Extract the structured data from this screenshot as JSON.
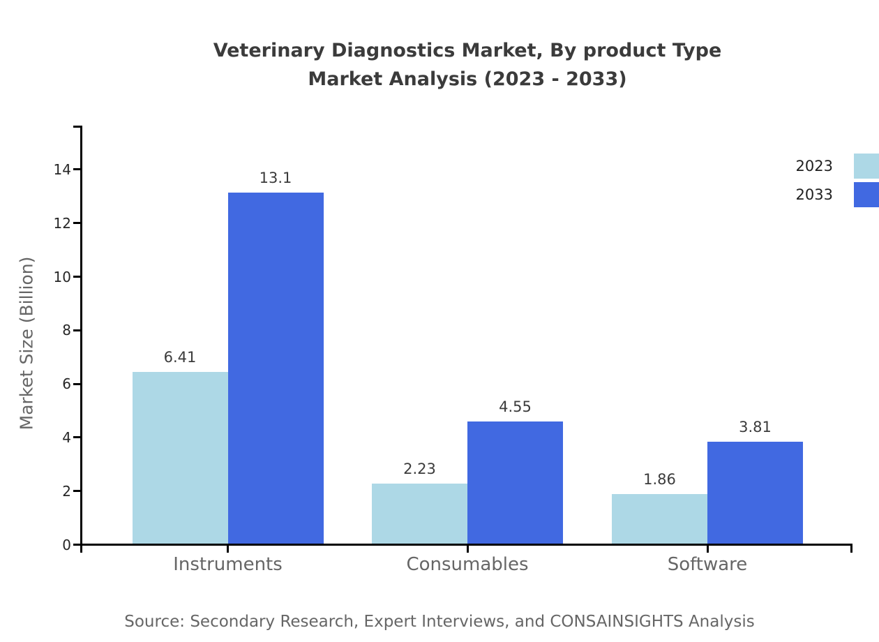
{
  "title": {
    "line1": "Veterinary Diagnostics Market, By product Type",
    "line2": "Market Analysis (2023 - 2033)"
  },
  "source_note": "Source: Secondary Research, Expert Interviews, and CONSAINSIGHTS Analysis",
  "chart_data": {
    "type": "bar",
    "title": "Veterinary Diagnostics Market, By product Type Market Analysis (2023 - 2033)",
    "categories": [
      "Instruments",
      "Consumables",
      "Software"
    ],
    "series": [
      {
        "name": "2023",
        "color": "#ADD8E6",
        "values": [
          6.41,
          2.23,
          1.86
        ]
      },
      {
        "name": "2033",
        "color": "#4169E1",
        "values": [
          13.1,
          4.55,
          3.81
        ]
      }
    ],
    "xlabel": "",
    "ylabel": "Market Size (Billion)",
    "yticks": [
      0,
      2,
      4,
      6,
      8,
      10,
      12,
      14
    ],
    "ylim": [
      0,
      15.6
    ],
    "grid": false,
    "legend_position": "upper right",
    "value_labels_shown": true,
    "axis_color": "#000000",
    "background_color": "#ffffff"
  }
}
